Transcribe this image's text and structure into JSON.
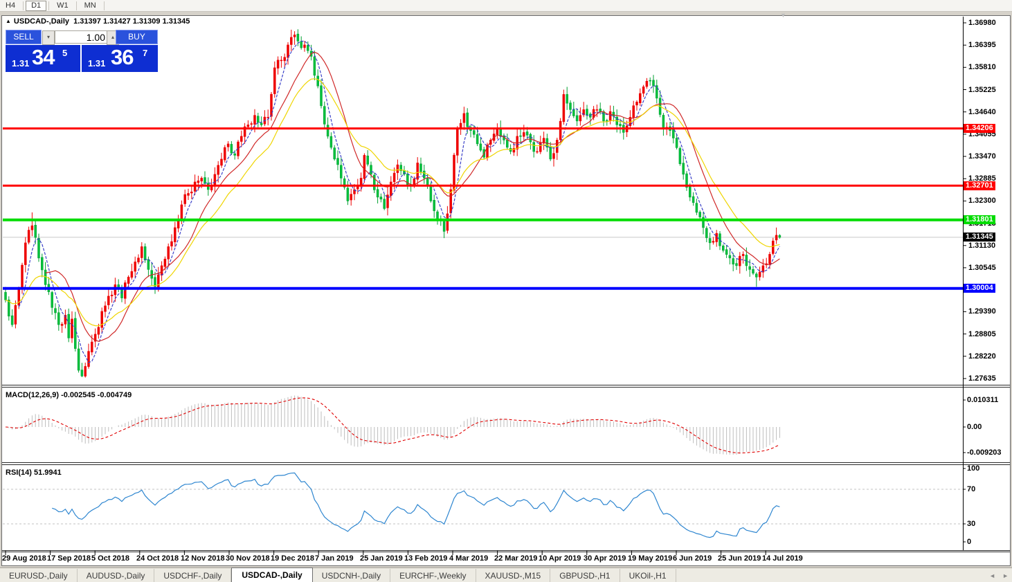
{
  "toolbar": {
    "timeframes": [
      "H4",
      "D1",
      "W1",
      "MN"
    ],
    "active_timeframe": "D1"
  },
  "chart": {
    "title_arrow": "▲",
    "symbol_title": "USDCAD-,Daily",
    "ohlc_text": "1.31397 1.31427 1.31309 1.31345",
    "trade_panel": {
      "sell_label": "SELL",
      "buy_label": "BUY",
      "volume": "1.00",
      "down_arrow": "▾",
      "up_arrow": "▴",
      "sell_price_small": "1.31",
      "sell_price_big": "34",
      "sell_price_sup": "5",
      "buy_price_small": "1.31",
      "buy_price_big": "36",
      "buy_price_sup": "7"
    },
    "shift_marker": "▼"
  },
  "price_axis": {
    "ticks": [
      "1.36980",
      "1.36395",
      "1.35810",
      "1.35225",
      "1.34640",
      "1.34055",
      "1.33470",
      "1.32885",
      "1.32300",
      "1.31715",
      "1.31130",
      "1.30545",
      "1.29390",
      "1.28805",
      "1.28220",
      "1.27635"
    ],
    "current_badge": {
      "label": "1.31345",
      "bg": "#000000"
    }
  },
  "date_axis": {
    "labels": [
      "29 Aug 2018",
      "17 Sep 2018",
      "5 Oct 2018",
      "24 Oct 2018",
      "12 Nov 2018",
      "30 Nov 2018",
      "19 Dec 2018",
      "7 Jan 2019",
      "25 Jan 2019",
      "13 Feb 2019",
      "4 Mar 2019",
      "22 Mar 2019",
      "10 Apr 2019",
      "30 Apr 2019",
      "19 May 2019",
      "6 Jun 2019",
      "25 Jun 2019",
      "14 Jul 2019"
    ]
  },
  "indicators": {
    "macd": {
      "label": "MACD(12,26,9) -0.002545 -0.004749",
      "axis": [
        "0.010311",
        "0.00",
        "-0.009203"
      ]
    },
    "rsi": {
      "label": "RSI(14) 51.9941",
      "axis": [
        "100",
        "70",
        "30",
        "0"
      ]
    }
  },
  "tabs": [
    "EURUSD-,Daily",
    "AUDUSD-,Daily",
    "USDCHF-,Daily",
    "USDCAD-,Daily",
    "USDCNH-,Daily",
    "EURCHF-,Weekly",
    "XAUUSD-,M15",
    "GBPUSD-,H1",
    "UKOil-,H1"
  ],
  "active_tab": "USDCAD-,Daily",
  "scrollbar": {
    "left_arrow": "◄",
    "right_arrow": "►"
  },
  "chart_data": {
    "type": "candlestick",
    "symbol": "USDCAD",
    "timeframe": "Daily",
    "bars_total": 234,
    "price_range_visible": [
      1.27635,
      1.3698
    ],
    "current_bar": {
      "open": 1.31397,
      "high": 1.31427,
      "low": 1.31309,
      "close": 1.31345
    },
    "current_price_line": {
      "value": 1.31345,
      "color": "#c8c8c8"
    },
    "close_path_anchors": [
      [
        0,
        1.297
      ],
      [
        2,
        1.2905
      ],
      [
        4,
        1.3
      ],
      [
        6,
        1.312
      ],
      [
        8,
        1.3165
      ],
      [
        10,
        1.308
      ],
      [
        12,
        1.301
      ],
      [
        14,
        1.295
      ],
      [
        16,
        1.2905
      ],
      [
        18,
        1.293
      ],
      [
        19,
        1.287
      ],
      [
        20,
        1.292
      ],
      [
        22,
        1.2785
      ],
      [
        23,
        1.277
      ],
      [
        25,
        1.2835
      ],
      [
        27,
        1.288
      ],
      [
        29,
        1.294
      ],
      [
        31,
        1.298
      ],
      [
        33,
        1.301
      ],
      [
        35,
        1.2975
      ],
      [
        37,
        1.303
      ],
      [
        39,
        1.307
      ],
      [
        41,
        1.311
      ],
      [
        43,
        1.305
      ],
      [
        45,
        1.3005
      ],
      [
        47,
        1.306
      ],
      [
        49,
        1.311
      ],
      [
        51,
        1.316
      ],
      [
        53,
        1.322
      ],
      [
        55,
        1.325
      ],
      [
        57,
        1.328
      ],
      [
        59,
        1.329
      ],
      [
        61,
        1.326
      ],
      [
        63,
        1.33
      ],
      [
        65,
        1.334
      ],
      [
        67,
        1.338
      ],
      [
        69,
        1.335
      ],
      [
        71,
        1.34
      ],
      [
        73,
        1.343
      ],
      [
        75,
        1.3455
      ],
      [
        77,
        1.343
      ],
      [
        79,
        1.345
      ],
      [
        81,
        1.358
      ],
      [
        83,
        1.36
      ],
      [
        85,
        1.364
      ],
      [
        86,
        1.366
      ],
      [
        88,
        1.365
      ],
      [
        90,
        1.364
      ],
      [
        92,
        1.361
      ],
      [
        93,
        1.356
      ],
      [
        95,
        1.348
      ],
      [
        97,
        1.34
      ],
      [
        99,
        1.334
      ],
      [
        101,
        1.329
      ],
      [
        103,
        1.323
      ],
      [
        105,
        1.326
      ],
      [
        107,
        1.329
      ],
      [
        108,
        1.335
      ],
      [
        110,
        1.33
      ],
      [
        112,
        1.324
      ],
      [
        114,
        1.321
      ],
      [
        116,
        1.328
      ],
      [
        118,
        1.3325
      ],
      [
        120,
        1.33
      ],
      [
        122,
        1.327
      ],
      [
        124,
        1.333
      ],
      [
        126,
        1.329
      ],
      [
        128,
        1.323
      ],
      [
        130,
        1.318
      ],
      [
        132,
        1.315
      ],
      [
        134,
        1.326
      ],
      [
        136,
        1.342
      ],
      [
        138,
        1.346
      ],
      [
        140,
        1.3415
      ],
      [
        142,
        1.338
      ],
      [
        144,
        1.3345
      ],
      [
        146,
        1.339
      ],
      [
        148,
        1.342
      ],
      [
        150,
        1.339
      ],
      [
        152,
        1.336
      ],
      [
        154,
        1.34
      ],
      [
        156,
        1.341
      ],
      [
        158,
        1.3385
      ],
      [
        160,
        1.336
      ],
      [
        162,
        1.3395
      ],
      [
        164,
        1.334
      ],
      [
        166,
        1.339
      ],
      [
        168,
        1.351
      ],
      [
        170,
        1.347
      ],
      [
        172,
        1.344
      ],
      [
        174,
        1.347
      ],
      [
        176,
        1.345
      ],
      [
        178,
        1.347
      ],
      [
        180,
        1.344
      ],
      [
        182,
        1.3465
      ],
      [
        184,
        1.343
      ],
      [
        186,
        1.341
      ],
      [
        188,
        1.345
      ],
      [
        190,
        1.349
      ],
      [
        192,
        1.353
      ],
      [
        194,
        1.3545
      ],
      [
        196,
        1.35
      ],
      [
        198,
        1.342
      ],
      [
        200,
        1.3415
      ],
      [
        202,
        1.337
      ],
      [
        204,
        1.33
      ],
      [
        206,
        1.324
      ],
      [
        208,
        1.32
      ],
      [
        210,
        1.316
      ],
      [
        212,
        1.312
      ],
      [
        214,
        1.3145
      ],
      [
        216,
        1.31
      ],
      [
        218,
        1.308
      ],
      [
        220,
        1.306
      ],
      [
        222,
        1.309
      ],
      [
        224,
        1.305
      ],
      [
        226,
        1.303
      ],
      [
        228,
        1.306
      ],
      [
        230,
        1.309
      ],
      [
        231,
        1.3125
      ],
      [
        232,
        1.314
      ],
      [
        233,
        1.31345
      ]
    ],
    "noise_amp": 0.0013,
    "wick_overrides": {
      "8": {
        "high": 1.32
      },
      "23": {
        "low": 1.2767
      },
      "86": {
        "high": 1.368
      },
      "226": {
        "low": 1.30045
      }
    },
    "candle_colors": {
      "up_fill": "#ee0000",
      "up_stroke": "#ee0000",
      "down_fill": "#00c03c",
      "down_stroke": "#00a030"
    },
    "h_lines": [
      {
        "label": "1.34206",
        "price": 1.34206,
        "color": "#ff0000",
        "width": 3
      },
      {
        "label": "1.32701",
        "price": 1.32701,
        "color": "#ff0000",
        "width": 3
      },
      {
        "label": "1.31801",
        "price": 1.31801,
        "color": "#00dc00",
        "width": 4
      },
      {
        "label": "1.30004",
        "price": 1.30004,
        "color": "#0000ff",
        "width": 4
      }
    ],
    "moving_averages": [
      {
        "period": 5,
        "type": "sma",
        "color": "#3a40c8",
        "dash": "4,2"
      },
      {
        "period": 13,
        "type": "sma",
        "color": "#d02828",
        "dash": ""
      },
      {
        "period": 21,
        "type": "ema",
        "color": "#efd500",
        "dash": ""
      }
    ],
    "macd": {
      "fast": 12,
      "slow": 26,
      "signal": 9,
      "current_main": -0.002545,
      "current_signal": -0.004749,
      "scale_max": 0.010311,
      "scale_min": -0.009203,
      "histogram_color": "#bdbdbd",
      "signal_color": "#e00000"
    },
    "rsi": {
      "period": 14,
      "current": 51.9941,
      "levels": [
        70,
        30
      ],
      "line_color": "#2e86d0",
      "level_color": "#c0c0c0"
    }
  }
}
